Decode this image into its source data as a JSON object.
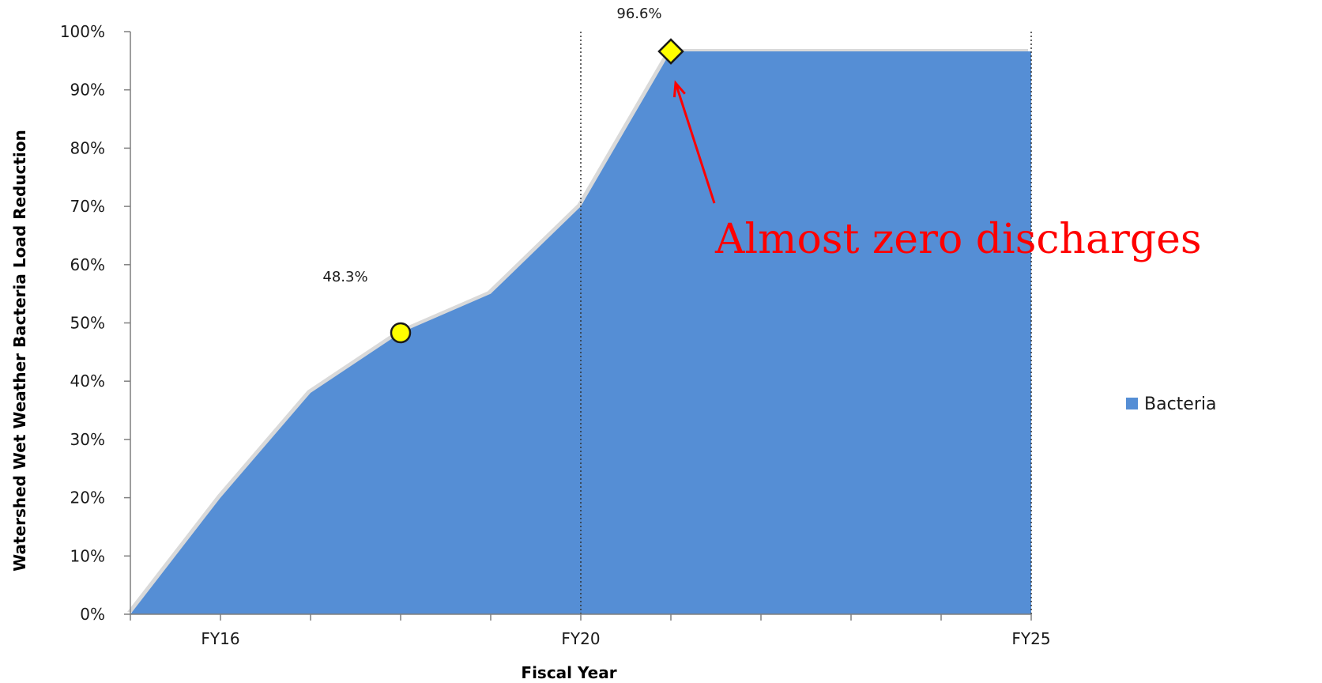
{
  "chart_data": {
    "type": "area",
    "xlabel": "Fiscal Year",
    "ylabel": "Watershed Wet Weather  Bacteria Load Reduction",
    "x": [
      "FY15",
      "FY16",
      "FY17",
      "FY18",
      "FY19",
      "FY20",
      "FY21",
      "FY22",
      "FY23",
      "FY24",
      "FY25"
    ],
    "x_tick_labels": [
      {
        "x": "FY16",
        "label": "FY16"
      },
      {
        "x": "FY20",
        "label": "FY20"
      },
      {
        "x": "FY25",
        "label": "FY25"
      }
    ],
    "ylim": [
      0,
      100
    ],
    "y_ticks": [
      "0%",
      "10%",
      "20%",
      "30%",
      "40%",
      "50%",
      "60%",
      "70%",
      "80%",
      "90%",
      "100%"
    ],
    "series": [
      {
        "name": "Bacteria",
        "color": "#558ed5",
        "values": [
          0,
          20,
          38,
          48.3,
          55,
          70,
          96.6,
          96.6,
          96.6,
          96.6,
          96.6
        ]
      }
    ],
    "reference_lines": [
      {
        "x": "FY20",
        "style": "dotted"
      },
      {
        "x": "FY25",
        "style": "dotted"
      }
    ],
    "markers": [
      {
        "x": "FY18",
        "y": 48.3,
        "shape": "circle",
        "color": "#ffff00",
        "label": "48.3%"
      },
      {
        "x": "FY21",
        "y": 96.6,
        "shape": "diamond",
        "color": "#ffff00",
        "label": "96.6%"
      }
    ],
    "annotation": {
      "text": "Almost zero discharges",
      "color": "#ff0000",
      "arrow_target": {
        "x": "FY21",
        "y": 96.6
      }
    },
    "legend": {
      "position": "right",
      "entries": [
        "Bacteria"
      ]
    },
    "grid": false
  }
}
